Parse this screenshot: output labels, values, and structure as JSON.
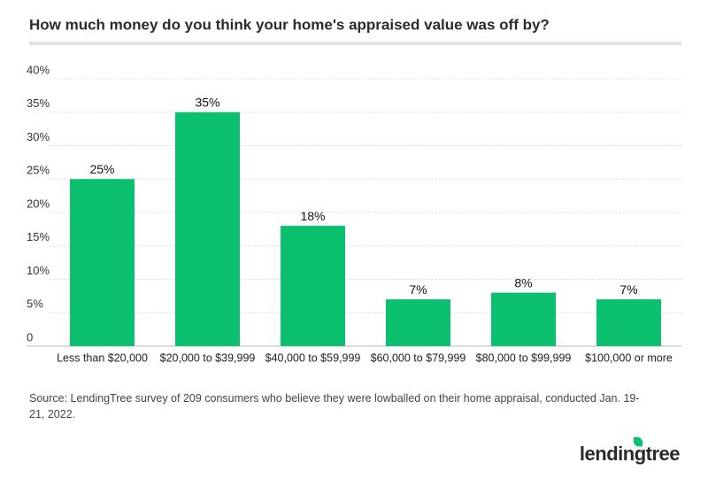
{
  "chart_data": {
    "type": "bar",
    "title": "How much money do you think your home's appraised value was off by?",
    "categories": [
      "Less than $20,000",
      "$20,000 to $39,999",
      "$40,000 to $59,999",
      "$60,000 to $79,999",
      "$80,000 to $99,999",
      "$100,000 or more"
    ],
    "values": [
      25,
      35,
      18,
      7,
      8,
      7
    ],
    "value_labels": [
      "25%",
      "35%",
      "18%",
      "7%",
      "8%",
      "7%"
    ],
    "color": "#0bc16f",
    "ylim": [
      0,
      40
    ],
    "yticks": [
      0,
      {
        "value": 5,
        "label": "5%"
      },
      {
        "value": 10,
        "label": "10%"
      },
      {
        "value": 15,
        "label": "15%"
      },
      {
        "value": 20,
        "label": "20%"
      },
      {
        "value": 25,
        "label": "25%"
      },
      {
        "value": 30,
        "label": "30%"
      },
      {
        "value": 35,
        "label": "35%"
      },
      {
        "value": 40,
        "label": "40%"
      }
    ],
    "grid": true,
    "source": "Source: LendingTree survey of 209 consumers who believe they were lowballed on their home appraisal, conducted Jan. 19-21, 2022.",
    "brand": "lendingtree"
  }
}
